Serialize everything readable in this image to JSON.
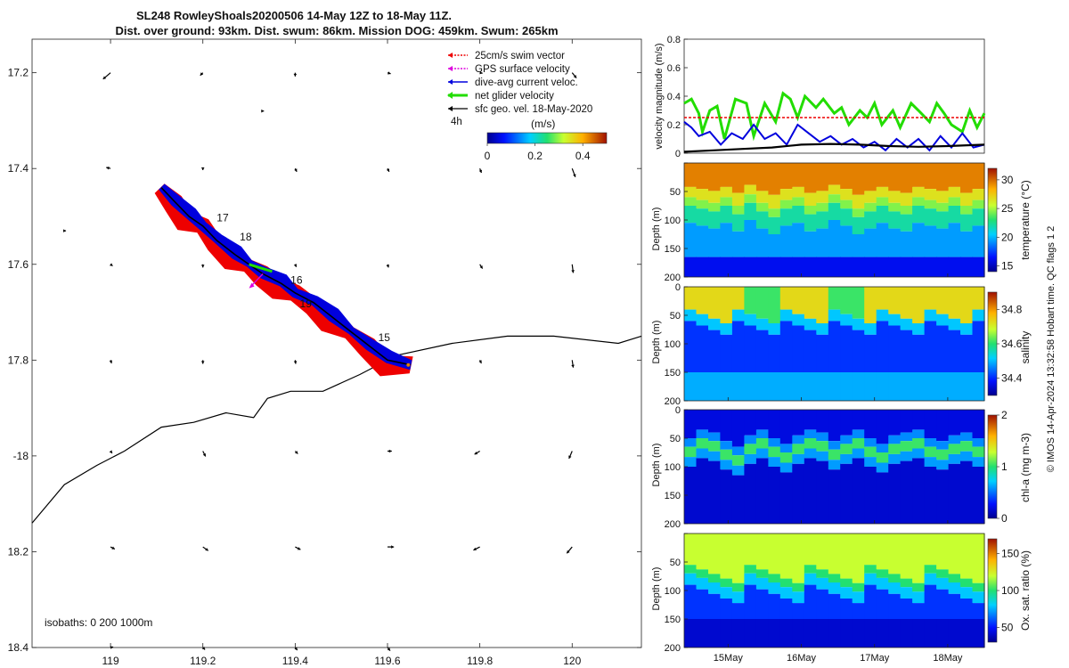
{
  "title": {
    "line1": "SL248 RowleyShoals20200506 14-May 12Z to 18-May 11Z.",
    "line2": "Dist. over ground: 93km. Dist. swum: 86km. Mission DOG: 459km. Swum: 265km"
  },
  "credit": "© IMOS 14-Apr-2024 13:32:58 Hobart time. QC flags 1  2",
  "colors": {
    "swim_vector": "#ee0000",
    "gps_surface": "#dd00dd",
    "dive_avg": "#0000dd",
    "net_glider": "#22dd00",
    "sfc_geo": "#000000"
  },
  "chart_data": [
    {
      "type": "map",
      "xlim": [
        118.83,
        120.15
      ],
      "ylim": [
        -18.4,
        -17.13
      ],
      "x_ticks": [
        119,
        119.2,
        119.4,
        119.6,
        119.8,
        120
      ],
      "x_tick_labels": [
        "119",
        "119.2",
        "119.4",
        "119.6",
        "119.8",
        "120"
      ],
      "y_ticks": [
        -17.2,
        -17.4,
        -17.6,
        -17.8,
        -18,
        -18.2,
        -18.4
      ],
      "y_tick_labels": [
        "17.2",
        "17.4",
        "17.6",
        "17.8",
        "-18",
        "18.2",
        "18.4"
      ],
      "legend": {
        "placement": "top-right",
        "entries": [
          "25cm/s swim vector",
          "GPS surface velocity",
          "dive-avg current veloc.",
          "net glider velocity",
          "sfc geo. vel. 18-May-2020"
        ],
        "time_step": "4h"
      },
      "colorbar": {
        "label": "(m/s)",
        "range": [
          0,
          0.5
        ],
        "ticks": [
          0,
          0.2,
          0.4
        ],
        "tick_labels": [
          "0",
          "0.2",
          "0.4"
        ]
      },
      "isobaths_label": "isobaths: 0   200  1000m",
      "track": [
        [
          119.11,
          -17.44
        ],
        [
          119.14,
          -17.47
        ],
        [
          119.17,
          -17.5
        ],
        [
          119.2,
          -17.52
        ],
        [
          119.23,
          -17.55
        ],
        [
          119.27,
          -17.58
        ],
        [
          119.3,
          -17.6
        ],
        [
          119.33,
          -17.62
        ],
        [
          119.37,
          -17.64
        ],
        [
          119.4,
          -17.66
        ],
        [
          119.44,
          -17.68
        ],
        [
          119.48,
          -17.71
        ],
        [
          119.52,
          -17.74
        ],
        [
          119.56,
          -17.77
        ],
        [
          119.6,
          -17.8
        ],
        [
          119.65,
          -17.81
        ]
      ],
      "day_labels": [
        {
          "text": "17",
          "lon": 119.23,
          "lat": -17.51
        },
        {
          "text": "18",
          "lon": 119.28,
          "lat": -17.55
        },
        {
          "text": "16",
          "lon": 119.39,
          "lat": -17.64
        },
        {
          "text": "19",
          "lon": 119.41,
          "lat": -17.69
        },
        {
          "text": "15",
          "lon": 119.58,
          "lat": -17.76
        }
      ],
      "coastline": [
        [
          118.83,
          -18.14
        ],
        [
          118.9,
          -18.06
        ],
        [
          118.97,
          -18.02
        ],
        [
          119.03,
          -17.99
        ],
        [
          119.11,
          -17.94
        ],
        [
          119.18,
          -17.93
        ],
        [
          119.25,
          -17.91
        ],
        [
          119.31,
          -17.92
        ],
        [
          119.34,
          -17.88
        ],
        [
          119.39,
          -17.865
        ],
        [
          119.46,
          -17.865
        ],
        [
          119.54,
          -17.83
        ],
        [
          119.62,
          -17.79
        ],
        [
          119.74,
          -17.765
        ],
        [
          119.86,
          -17.75
        ],
        [
          119.96,
          -17.75
        ],
        [
          120.1,
          -17.765
        ],
        [
          120.15,
          -17.75
        ]
      ],
      "geo_vectors": [
        {
          "lon": 119,
          "lat": -17.2,
          "u": -0.14,
          "v": -0.12
        },
        {
          "lon": 119.2,
          "lat": -17.2,
          "u": -0.05,
          "v": -0.05
        },
        {
          "lon": 119.4,
          "lat": -17.2,
          "u": 0,
          "v": -0.07
        },
        {
          "lon": 119.6,
          "lat": -17.2,
          "u": 0.06,
          "v": -0.02
        },
        {
          "lon": 119.8,
          "lat": -17.2,
          "u": 0.05,
          "v": -0.01
        },
        {
          "lon": 120,
          "lat": -17.2,
          "u": 0.08,
          "v": -0.1
        },
        {
          "lon": 119.33,
          "lat": -17.28,
          "u": 0.02,
          "v": 0
        },
        {
          "lon": 119,
          "lat": -17.4,
          "u": -0.08,
          "v": 0.02
        },
        {
          "lon": 119.2,
          "lat": -17.4,
          "u": 0,
          "v": -0.03
        },
        {
          "lon": 119.4,
          "lat": -17.4,
          "u": 0.03,
          "v": -0.06
        },
        {
          "lon": 119.6,
          "lat": -17.4,
          "u": 0.03,
          "v": -0.06
        },
        {
          "lon": 119.8,
          "lat": -17.4,
          "u": 0.03,
          "v": -0.08
        },
        {
          "lon": 120,
          "lat": -17.4,
          "u": 0.06,
          "v": -0.16
        },
        {
          "lon": 118.9,
          "lat": -17.53,
          "u": 0.03,
          "v": 0
        },
        {
          "lon": 119,
          "lat": -17.6,
          "u": 0.04,
          "v": -0.03
        },
        {
          "lon": 119.2,
          "lat": -17.6,
          "u": 0,
          "v": -0.06
        },
        {
          "lon": 119.4,
          "lat": -17.6,
          "u": 0.02,
          "v": -0.05
        },
        {
          "lon": 119.6,
          "lat": -17.6,
          "u": 0.02,
          "v": -0.06
        },
        {
          "lon": 119.8,
          "lat": -17.6,
          "u": 0.05,
          "v": -0.08
        },
        {
          "lon": 120,
          "lat": -17.6,
          "u": 0.02,
          "v": -0.16
        },
        {
          "lon": 119,
          "lat": -17.8,
          "u": 0.02,
          "v": -0.06
        },
        {
          "lon": 119.2,
          "lat": -17.8,
          "u": 0,
          "v": -0.07
        },
        {
          "lon": 119.4,
          "lat": -17.8,
          "u": 0.01,
          "v": -0.07
        },
        {
          "lon": 119.8,
          "lat": -17.8,
          "u": 0.03,
          "v": -0.06
        },
        {
          "lon": 120,
          "lat": -17.8,
          "u": 0.02,
          "v": -0.14
        },
        {
          "lon": 119,
          "lat": -17.99,
          "u": 0.03,
          "v": -0.04
        },
        {
          "lon": 119.2,
          "lat": -17.99,
          "u": 0.05,
          "v": -0.1
        },
        {
          "lon": 119.4,
          "lat": -17.99,
          "u": 0.05,
          "v": -0.05
        },
        {
          "lon": 119.6,
          "lat": -17.99,
          "u": 0.08,
          "v": 0
        },
        {
          "lon": 119.8,
          "lat": -17.99,
          "u": -0.1,
          "v": -0.06
        },
        {
          "lon": 120,
          "lat": -17.99,
          "u": -0.06,
          "v": -0.14
        },
        {
          "lon": 119,
          "lat": -18.19,
          "u": 0.08,
          "v": -0.04
        },
        {
          "lon": 119.2,
          "lat": -18.19,
          "u": 0.1,
          "v": -0.07
        },
        {
          "lon": 119.4,
          "lat": -18.19,
          "u": 0.1,
          "v": -0.05
        },
        {
          "lon": 119.6,
          "lat": -18.19,
          "u": 0.12,
          "v": 0
        },
        {
          "lon": 119.8,
          "lat": -18.19,
          "u": -0.12,
          "v": -0.06
        },
        {
          "lon": 120,
          "lat": -18.19,
          "u": -0.1,
          "v": -0.12
        },
        {
          "lon": 119,
          "lat": -18.4,
          "u": 0.05,
          "v": 0.01
        },
        {
          "lon": 119.2,
          "lat": -18.4,
          "u": 0.04,
          "v": -0.04
        },
        {
          "lon": 119.4,
          "lat": -18.4,
          "u": 0.04,
          "v": -0.05
        },
        {
          "lon": 119.6,
          "lat": -18.4,
          "u": 0.05,
          "v": -0.06
        }
      ]
    },
    {
      "type": "line",
      "ylabel": "velocity magnitude (m/s)",
      "xlim": [
        14.4,
        18.5
      ],
      "ylim": [
        0,
        0.8
      ],
      "y_ticks": [
        0,
        0.2,
        0.4,
        0.6,
        0.8
      ],
      "y_tick_labels": [
        "0",
        "0.2",
        "0.4",
        "0.6",
        "0.8"
      ],
      "series": [
        {
          "name": "net glider velocity",
          "x": [
            14.4,
            14.5,
            14.6,
            14.65,
            14.75,
            14.85,
            14.95,
            15.1,
            15.25,
            15.35,
            15.5,
            15.65,
            15.75,
            15.85,
            15.95,
            16.05,
            16.2,
            16.3,
            16.45,
            16.55,
            16.65,
            16.8,
            16.9,
            17.0,
            17.1,
            17.25,
            17.35,
            17.5,
            17.6,
            17.75,
            17.85,
            17.95,
            18.05,
            18.2,
            18.3,
            18.4,
            18.5
          ],
          "values": [
            0.35,
            0.38,
            0.28,
            0.15,
            0.3,
            0.33,
            0.1,
            0.38,
            0.35,
            0.12,
            0.35,
            0.22,
            0.42,
            0.38,
            0.25,
            0.4,
            0.32,
            0.38,
            0.28,
            0.32,
            0.2,
            0.3,
            0.25,
            0.35,
            0.2,
            0.3,
            0.18,
            0.35,
            0.3,
            0.22,
            0.35,
            0.28,
            0.2,
            0.15,
            0.3,
            0.18,
            0.28
          ]
        },
        {
          "name": "25cm/s swim vector",
          "x": [
            14.4,
            18.5
          ],
          "values": [
            0.25,
            0.25
          ]
        },
        {
          "name": "dive-avg current veloc.",
          "x": [
            14.4,
            14.5,
            14.6,
            14.75,
            14.9,
            15.05,
            15.2,
            15.35,
            15.5,
            15.65,
            15.8,
            15.95,
            16.1,
            16.25,
            16.4,
            16.55,
            16.7,
            16.85,
            17.0,
            17.15,
            17.3,
            17.45,
            17.6,
            17.75,
            17.9,
            18.05,
            18.2,
            18.35,
            18.5
          ],
          "values": [
            0.22,
            0.18,
            0.12,
            0.15,
            0.06,
            0.14,
            0.1,
            0.2,
            0.1,
            0.14,
            0.06,
            0.2,
            0.14,
            0.08,
            0.12,
            0.06,
            0.1,
            0.04,
            0.08,
            0.02,
            0.1,
            0.04,
            0.1,
            0.02,
            0.12,
            0.04,
            0.14,
            0.04,
            0.06
          ]
        },
        {
          "name": "sfc geo. vel. 18-May-2020",
          "x": [
            14.4,
            14.8,
            15.2,
            15.6,
            16.0,
            16.4,
            16.8,
            17.2,
            17.6,
            18.0,
            18.5
          ],
          "values": [
            0.01,
            0.02,
            0.03,
            0.04,
            0.06,
            0.065,
            0.06,
            0.05,
            0.045,
            0.05,
            0.06
          ]
        }
      ]
    },
    {
      "type": "heatmap",
      "ylabel": "Depth (m)",
      "colorbar_label": "temperature (°C)",
      "ylim": [
        200,
        0
      ],
      "y_ticks": [
        0,
        50,
        100,
        150,
        200
      ],
      "y_tick_labels": [
        "",
        "50",
        "100",
        "150",
        "200"
      ],
      "clim": [
        14,
        32
      ],
      "c_ticks": [
        15,
        20,
        25,
        30
      ],
      "c_tick_labels": [
        "15",
        "20",
        "25",
        "30"
      ],
      "mixed_layer_depth_m": [
        60,
        65,
        70,
        60,
        75,
        55,
        70,
        80,
        65,
        60,
        75,
        70,
        55,
        65,
        80,
        70,
        60,
        70,
        75,
        60,
        65,
        70,
        60,
        75,
        65
      ]
    },
    {
      "type": "heatmap",
      "ylabel": "Depth (m)",
      "colorbar_label": "salinity",
      "ylim": [
        200,
        0
      ],
      "y_ticks": [
        0,
        50,
        100,
        150,
        200
      ],
      "y_tick_labels": [
        "0",
        "50",
        "100",
        "150",
        "200"
      ],
      "clim": [
        34.3,
        34.9
      ],
      "c_ticks": [
        34.4,
        34.6,
        34.8
      ],
      "c_tick_labels": [
        "34.4",
        "34.6",
        "34.8"
      ]
    },
    {
      "type": "heatmap",
      "ylabel": "Depth (m)",
      "colorbar_label": "chl-a (mg m-3)",
      "ylim": [
        200,
        0
      ],
      "y_ticks": [
        0,
        50,
        100,
        150,
        200
      ],
      "y_tick_labels": [
        "0",
        "50",
        "100",
        "150",
        "200"
      ],
      "clim": [
        0,
        2
      ],
      "c_ticks": [
        0,
        1,
        2
      ],
      "c_tick_labels": [
        "0",
        "1",
        "2"
      ],
      "chl_max_depth_m": [
        75,
        60,
        65,
        80,
        90,
        70,
        60,
        75,
        85,
        70,
        60,
        65,
        80,
        70,
        60,
        75,
        85,
        70,
        65,
        60,
        75,
        80,
        70,
        65,
        75
      ]
    },
    {
      "type": "heatmap",
      "ylabel": "Depth (m)",
      "colorbar_label": "Ox. sat. ratio (%)",
      "ylim": [
        200,
        0
      ],
      "y_ticks": [
        0,
        50,
        100,
        150,
        200
      ],
      "y_tick_labels": [
        "",
        "50",
        "100",
        "150",
        "200"
      ],
      "clim": [
        30,
        170
      ],
      "c_ticks": [
        50,
        100,
        150
      ],
      "c_tick_labels": [
        "50",
        "100",
        "150"
      ],
      "x_ticks": [
        15,
        16,
        17,
        18
      ],
      "x_tick_labels": [
        "15May",
        "16May",
        "17May",
        "18May"
      ]
    }
  ]
}
